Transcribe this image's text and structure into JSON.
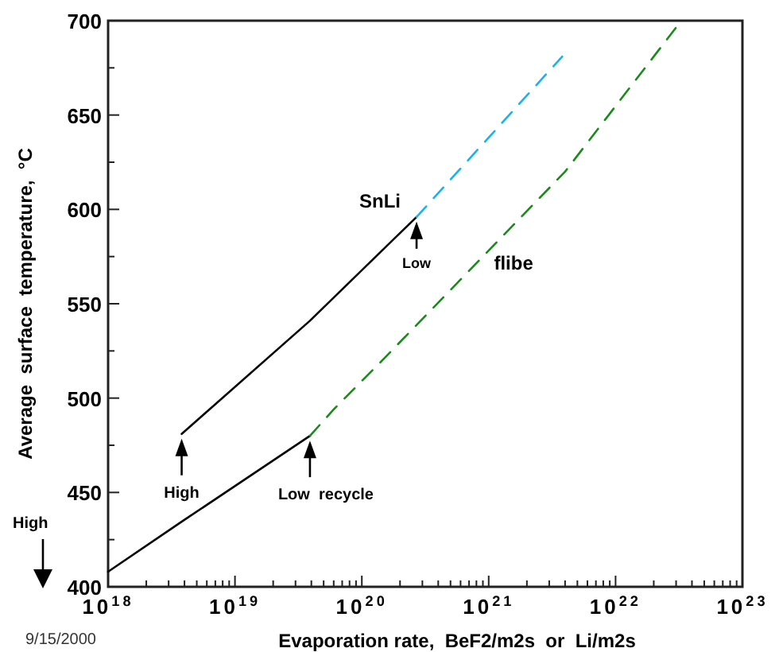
{
  "chart_data": {
    "type": "line",
    "xlabel": "Evaporation rate,  BeF2/m2s  or  Li/m2s",
    "ylabel": "Average  surface  temperature,  °C",
    "log": "x",
    "grid": false,
    "xlim": [
      1e+18,
      1e+23
    ],
    "ylim": [
      400,
      700
    ],
    "xticks": [
      {
        "value": 1e+18,
        "label": "10$^{18}$"
      },
      {
        "value": 2e+18,
        "label": null
      },
      {
        "value": 3e+18,
        "label": null
      },
      {
        "value": 4e+18,
        "label": null
      },
      {
        "value": 5e+18,
        "label": null
      },
      {
        "value": 6e+18,
        "label": null
      },
      {
        "value": 7e+18,
        "label": null
      },
      {
        "value": 8e+18,
        "label": null
      },
      {
        "value": 9e+18,
        "label": null
      },
      {
        "value": 1e+19,
        "label": "10$^{19}$"
      },
      {
        "value": 2e+19,
        "label": null
      },
      {
        "value": 3e+19,
        "label": null
      },
      {
        "value": 4e+19,
        "label": null
      },
      {
        "value": 5e+19,
        "label": null
      },
      {
        "value": 6e+19,
        "label": null
      },
      {
        "value": 7e+19,
        "label": null
      },
      {
        "value": 8e+19,
        "label": null
      },
      {
        "value": 9e+19,
        "label": null
      },
      {
        "value": 1e+20,
        "label": "10$^{20}$"
      },
      {
        "value": 2e+20,
        "label": null
      },
      {
        "value": 3e+20,
        "label": null
      },
      {
        "value": 4e+20,
        "label": null
      },
      {
        "value": 5e+20,
        "label": null
      },
      {
        "value": 6e+20,
        "label": null
      },
      {
        "value": 7e+20,
        "label": null
      },
      {
        "value": 8e+20,
        "label": null
      },
      {
        "value": 9e+20,
        "label": null
      },
      {
        "value": 1e+21,
        "label": "10$^{21}$"
      },
      {
        "value": 2e+21,
        "label": null
      },
      {
        "value": 3e+21,
        "label": null
      },
      {
        "value": 4e+21,
        "label": null
      },
      {
        "value": 5e+21,
        "label": null
      },
      {
        "value": 6e+21,
        "label": null
      },
      {
        "value": 7e+21,
        "label": null
      },
      {
        "value": 8e+21,
        "label": null
      },
      {
        "value": 9e+21,
        "label": null
      },
      {
        "value": 1e+22,
        "label": "10$^{22}$"
      },
      {
        "value": 2e+22,
        "label": null
      },
      {
        "value": 3e+22,
        "label": null
      },
      {
        "value": 4e+22,
        "label": null
      },
      {
        "value": 5e+22,
        "label": null
      },
      {
        "value": 6e+22,
        "label": null
      },
      {
        "value": 7e+22,
        "label": null
      },
      {
        "value": 8e+22,
        "label": null
      },
      {
        "value": 9e+22,
        "label": null
      },
      {
        "value": 1e+23,
        "label": "10$^{23}$"
      }
    ],
    "yticks": [
      400,
      {
        "value": 425,
        "label": null
      },
      450,
      {
        "value": 475,
        "label": null
      },
      500,
      {
        "value": 525,
        "label": null
      },
      550,
      {
        "value": 575,
        "label": null
      },
      600,
      {
        "value": 625,
        "label": null
      },
      650,
      {
        "value": 675,
        "label": null
      },
      700
    ],
    "series": [
      {
        "color": "#000000",
        "line_style": "solid",
        "x": [
          3.8e+18,
          3.9e+19,
          2.7e+20
        ],
        "values": [
          481,
          541,
          596
        ]
      },
      {
        "color": "#1ab2ee",
        "line_style": "dashed",
        "x": [
          2.7e+20,
          3.8e+21
        ],
        "values": [
          596,
          681
        ]
      },
      {
        "color": "#000000",
        "line_style": "solid",
        "x": [
          1e+18,
          3.9e+18,
          3.9e+19
        ],
        "values": [
          408,
          435,
          480
        ]
      },
      {
        "color": "#1a8a1a",
        "line_style": "dashed",
        "x": [
          3.9e+19,
          6e+19,
          1.45e+20,
          4e+21,
          3.3e+22
        ],
        "values": [
          480,
          494,
          520,
          620,
          700
        ]
      }
    ],
    "annotations": [
      "SnLi",
      "flibe",
      "High",
      "Low  recycle",
      "Low",
      "High",
      "9/15/2000"
    ]
  }
}
